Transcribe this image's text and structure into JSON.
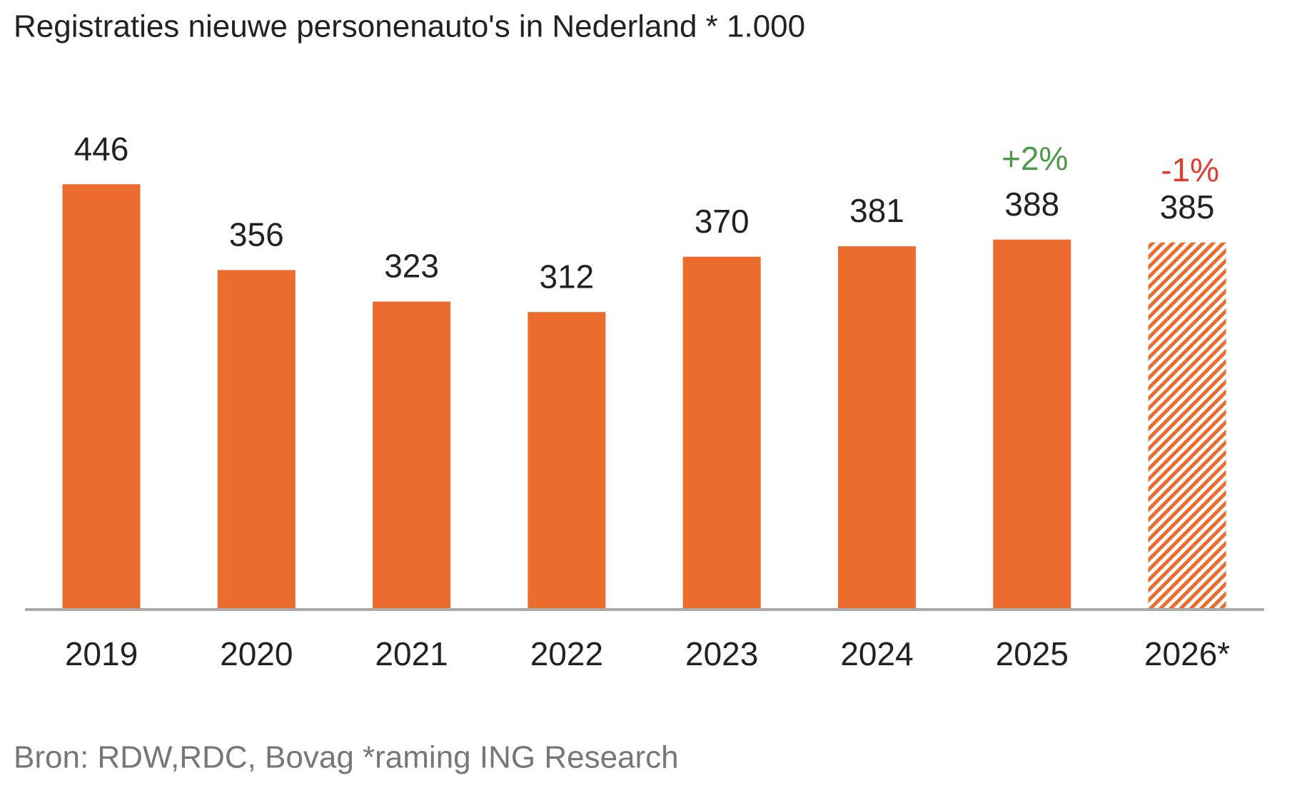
{
  "chart_data": {
    "type": "bar",
    "subtitle": "Registraties nieuwe personenauto's in Nederland * 1.000",
    "source": "Bron: RDW,RDC, Bovag *raming ING Research",
    "categories": [
      "2019",
      "2020",
      "2021",
      "2022",
      "2023",
      "2024",
      "2025",
      "2026*"
    ],
    "values": [
      446,
      356,
      323,
      312,
      370,
      381,
      388,
      385
    ],
    "color": "#ec6c2e",
    "hatched": [
      false,
      false,
      false,
      false,
      false,
      false,
      false,
      true
    ],
    "annotations": [
      null,
      null,
      null,
      null,
      null,
      null,
      "+2%",
      "-1%"
    ],
    "annotation_colors": [
      null,
      null,
      null,
      null,
      null,
      null,
      "#4b9a4b",
      "#e23b2e"
    ]
  }
}
